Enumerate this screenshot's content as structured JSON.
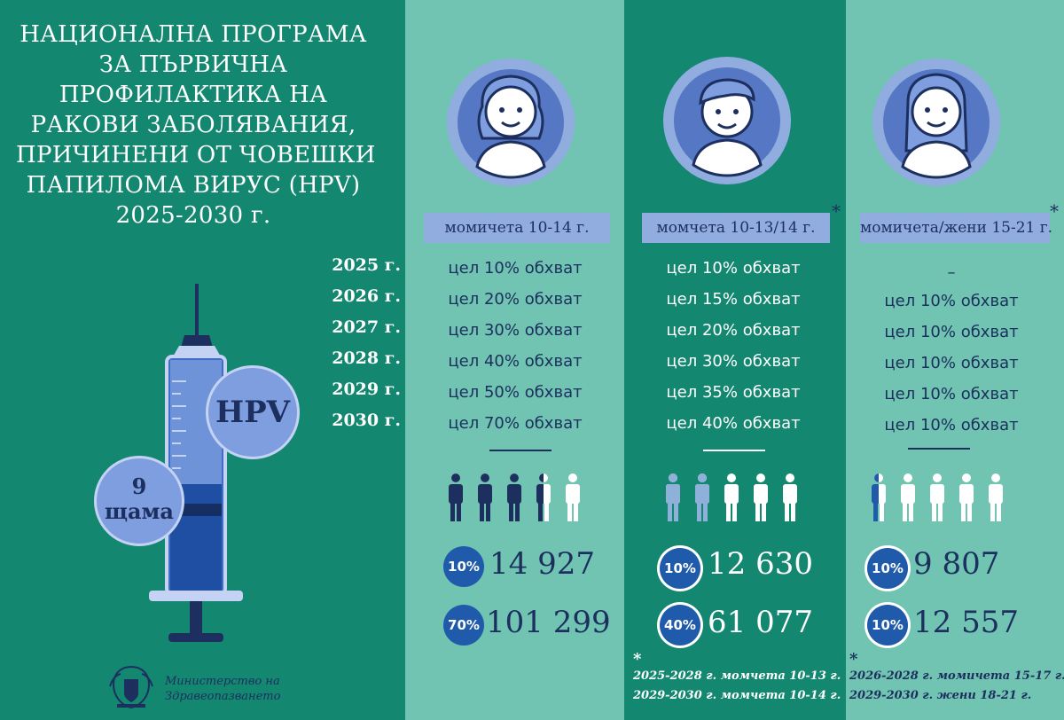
{
  "title_lines": [
    "НАЦИОНАЛНА ПРОГРАМА",
    "ЗА ПЪРВИЧНА",
    "ПРОФИЛАКТИКА НА",
    "РАКОВИ ЗАБОЛЯВАНИЯ,",
    "ПРИЧИНЕНИ ОТ ЧОВЕШКИ",
    "ПАПИЛОМА ВИРУС (HPV)",
    "2025-2030 г."
  ],
  "years": [
    "2025 г.",
    "2026 г.",
    "2027 г.",
    "2028 г.",
    "2029 г.",
    "2030 г."
  ],
  "syringe": {
    "hpv_label": "HPV",
    "doses_number": "9",
    "doses_word": "щама"
  },
  "ministry": {
    "line1": "Министерство на",
    "line2": "Здравеопазването"
  },
  "groups": [
    {
      "label": "момичета 10-14 г.",
      "asterisk": "",
      "goals": [
        "цел 10% обхват",
        "цел 20% обхват",
        "цел 30% обхват",
        "цел 40% обхват",
        "цел 50% обхват",
        "цел 70% обхват"
      ],
      "people_filled_fraction": 0.7,
      "stats": [
        {
          "pct": "10%",
          "count": "14 927"
        },
        {
          "pct": "70%",
          "count": "101 299"
        }
      ],
      "footnote": {
        "mark": "",
        "lines": []
      }
    },
    {
      "label": "момчета 10-13/14 г.",
      "asterisk": "*",
      "goals": [
        "цел 10% обхват",
        "цел 15% обхват",
        "цел 20% обхват",
        "цел 30% обхват",
        "цел 35% обхват",
        "цел 40% обхват"
      ],
      "people_filled_fraction": 0.4,
      "stats": [
        {
          "pct": "10%",
          "count": "12 630"
        },
        {
          "pct": "40%",
          "count": "61 077"
        }
      ],
      "footnote": {
        "mark": "*",
        "lines": [
          "2025-2028 г. момчета 10-13 г.",
          "2029-2030 г. момчета 10-14 г."
        ]
      }
    },
    {
      "label": "момичета/жени 15-21 г.",
      "asterisk": "*",
      "goals": [
        "–",
        "цел 10% обхват",
        "цел 10% обхват",
        "цел 10% обхват",
        "цел 10% обхват",
        "цел 10% обхват"
      ],
      "people_filled_fraction": 0.1,
      "stats": [
        {
          "pct": "10%",
          "count": "9 807"
        },
        {
          "pct": "10%",
          "count": "12 557"
        }
      ],
      "footnote": {
        "mark": "*",
        "lines": [
          "2026-2028 г. момичета 15-17 г.",
          "2029-2030 г. жени 18-21 г."
        ]
      }
    }
  ],
  "colors": {
    "dark_teal": "#13876f",
    "light_teal": "#70c4b1",
    "navy": "#1c2f5e",
    "periwinkle": "#91acdf",
    "badge_blue": "#1f5aab"
  }
}
